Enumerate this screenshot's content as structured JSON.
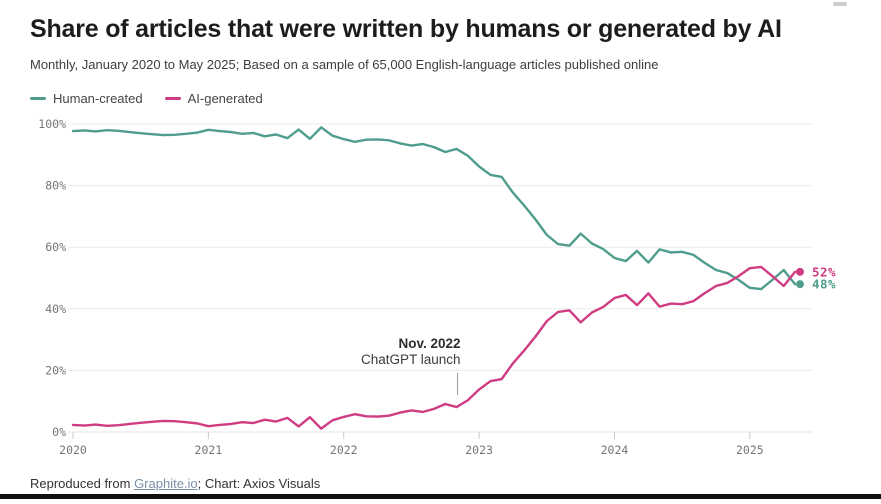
{
  "header": {
    "title": "Share of articles that were written by humans or generated by AI",
    "subtitle": "Monthly, January 2020 to May 2025; Based on a sample of 65,000 English-language articles published online"
  },
  "legend": [
    {
      "label": "Human-created",
      "color": "#4f9d8d"
    },
    {
      "label": "AI-generated",
      "color": "#d03c82"
    }
  ],
  "footer": {
    "prefix": "Reproduced from ",
    "link_label": "Graphite.io",
    "suffix": "; Chart: Axios Visuals"
  },
  "chart_data": {
    "type": "line",
    "title": "Share of articles that were written by humans or generated by AI",
    "x_start": "2020-01",
    "x_end": "2025-05",
    "months_total": 65,
    "x_tick_labels": [
      "2020",
      "2021",
      "2022",
      "2023",
      "2024",
      "2025"
    ],
    "y_tick_labels": [
      "0%",
      "20%",
      "40%",
      "60%",
      "80%",
      "100%"
    ],
    "ylim": [
      0,
      100
    ],
    "grid": "horizontal",
    "legend_position": "top-left",
    "annotation": {
      "line1": "Nov. 2022",
      "line2": "ChatGPT launch",
      "x_month_index": 34
    },
    "series": [
      {
        "name": "Human-created",
        "color": "#4f9d8d",
        "end_label": "48%",
        "values": [
          97.7,
          97.9,
          97.6,
          98.0,
          97.8,
          97.4,
          97.0,
          96.7,
          96.4,
          96.5,
          96.8,
          97.2,
          98.1,
          97.7,
          97.4,
          96.8,
          97.1,
          96.0,
          96.6,
          95.4,
          98.2,
          95.2,
          98.9,
          96.2,
          95.1,
          94.2,
          94.9,
          95.0,
          94.7,
          93.7,
          93.0,
          93.5,
          92.5,
          90.9,
          91.9,
          89.7,
          86.2,
          83.5,
          82.8,
          77.7,
          73.5,
          69.0,
          64.0,
          61.0,
          60.5,
          64.4,
          61.2,
          59.4,
          56.5,
          55.5,
          58.8,
          55.0,
          59.3,
          58.3,
          58.5,
          57.5,
          54.9,
          52.6,
          51.6,
          49.4,
          46.8,
          46.4,
          49.4,
          52.6,
          48.0
        ]
      },
      {
        "name": "AI-generated",
        "color": "#d03c82",
        "end_label": "52%",
        "values": [
          2.3,
          2.1,
          2.4,
          2.0,
          2.2,
          2.6,
          3.0,
          3.3,
          3.6,
          3.5,
          3.2,
          2.8,
          1.9,
          2.3,
          2.6,
          3.2,
          2.9,
          4.0,
          3.4,
          4.6,
          1.8,
          4.8,
          1.1,
          3.8,
          4.9,
          5.8,
          5.1,
          5.0,
          5.3,
          6.3,
          7.0,
          6.5,
          7.5,
          9.1,
          8.1,
          10.3,
          13.8,
          16.5,
          17.2,
          22.3,
          26.5,
          31.0,
          36.0,
          39.0,
          39.5,
          35.6,
          38.8,
          40.6,
          43.5,
          44.5,
          41.2,
          45.0,
          40.7,
          41.7,
          41.5,
          42.5,
          45.1,
          47.4,
          48.4,
          50.6,
          53.2,
          53.6,
          50.6,
          47.4,
          52.0
        ]
      }
    ]
  }
}
